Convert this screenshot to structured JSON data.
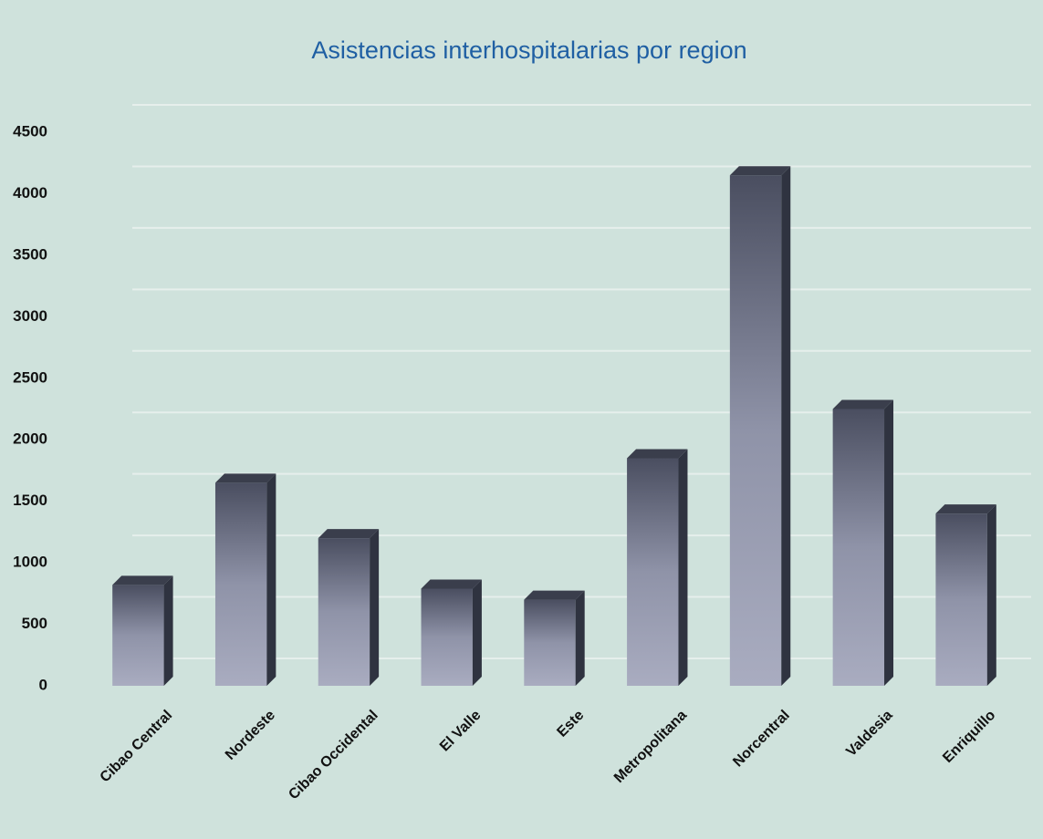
{
  "chart_data": {
    "type": "bar3d",
    "title": "Asistencias interhospitalarias por region",
    "categories": [
      "Cibao Central",
      "Nordeste",
      "Cibao Occidental",
      "El Valle",
      "Este",
      "Metropolitana",
      "Norcentral",
      "Valdesia",
      "Enriquillo"
    ],
    "values": [
      820,
      1650,
      1200,
      790,
      700,
      1850,
      4150,
      2250,
      1400
    ],
    "color": "#9c9fb4",
    "ylim": [
      0,
      4500
    ],
    "yticks": [
      0,
      500,
      1000,
      1500,
      2000,
      2500,
      3000,
      3500,
      4000,
      4500
    ],
    "grid": true
  }
}
